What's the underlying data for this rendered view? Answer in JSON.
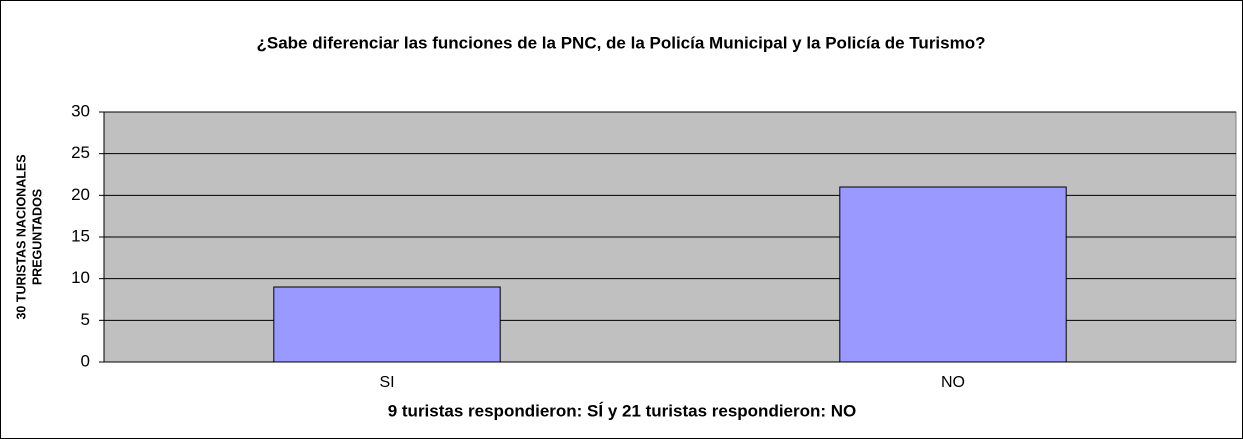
{
  "chart_data": {
    "type": "bar",
    "title": "¿Sabe diferenciar las funciones de la PNC, de la Policía Municipal y la Policía de Turismo?",
    "ylabel": [
      "30 TURISTAS NACIONALES",
      "PREGUNTADOS"
    ],
    "xlabel": "9 turistas respondieron: SÍ  y 21 turistas respondieron: NO",
    "categories": [
      "SI",
      "NO"
    ],
    "values": [
      9,
      21
    ],
    "color": "#9999ff",
    "ylim": [
      0,
      30
    ],
    "yticks": [
      0,
      5,
      10,
      15,
      20,
      25,
      30
    ],
    "grid": true
  }
}
